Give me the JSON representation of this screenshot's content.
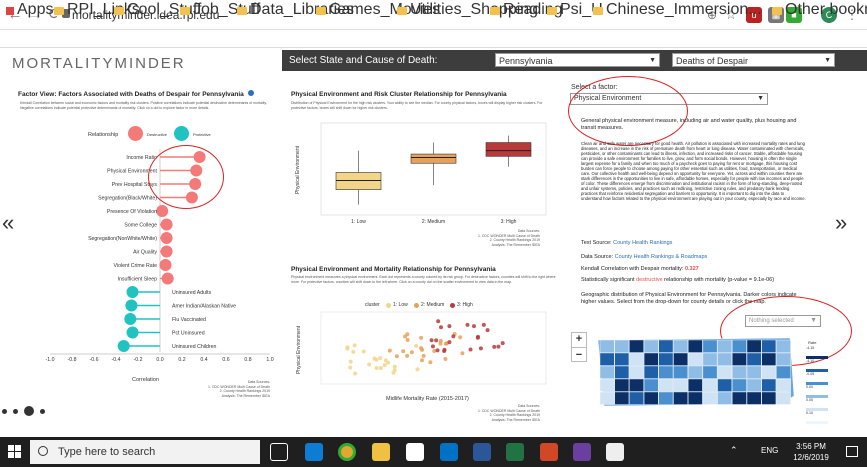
{
  "browser": {
    "url": "mortalityminder.idea.rpi.edu",
    "bookmarks": [
      "Apps",
      "RPI_Links",
      "Cool_Stuff",
      "Job_Stuff",
      "Data_Libraries",
      "Games_Movies",
      "Utilities_Shopping",
      "Reading",
      "Psi_U",
      "Chinese_Immersion..."
    ],
    "other_bookmarks": "Other bookmarks",
    "profile_initial": "C"
  },
  "app": {
    "logo": "MORTALITYMINDER",
    "select_label": "Select State and Cause of Death:",
    "state": "Pennsylvania",
    "cause": "Deaths of Despair"
  },
  "factor_view": {
    "title": "Factor View: Factors Associated with Deaths of Despair for Pennsylvania",
    "intro": "Kendall Correlation between social and economic factors and mortality risk clusters. Positive correlations indicate potential destructive determinants of mortality. Negative correlations indicate potential protective determinants of mortality. Click on a dot to explore factor in more details.",
    "legend_label": "Relationship",
    "legend_destructive": "Destructive",
    "legend_protective": "Protective",
    "x_axis_label": "Correlation",
    "source": "Data Sources:\n1. CDC WONDER Multi Cause of Death\n2. County Health Rankings 2019\nAnalysis: The Remember IDEA",
    "colors": {
      "destructive": "#f47a7a",
      "protective": "#20c2c2"
    }
  },
  "cluster_box": {
    "title": "Physical Environment and Risk Cluster Relationship for Pennsylvania",
    "desc": "Distribution of Physical Environment for the high risk clusters. Your ability to see the median. For county physical factors, boxes will display higher risk clusters. For protective factors, boxes will shift down for higher risk clusters.",
    "y_axis_label": "Physical Environment",
    "source": "Data Sources:\n1. CDC WONDER Multi Cause of Death\n2. County Health Rankings 2019\nAnalysis: The Remember IDEA"
  },
  "scatter": {
    "title": "Physical Environment and Mortality Relationship for Pennsylvania",
    "desc": "Physical environment measures a physical environment. Each dot represents a county colored by its risk group. For destructive factors, counties will shift to the right where more. For protective factors, counties will shift down to the left where. Click on a county dot on the scatter environment to view data in the map.",
    "legend_title": "cluster",
    "legend_items": [
      "1: Low",
      "2: Medium",
      "3: High"
    ],
    "legend_colors": [
      "#f3d58a",
      "#e8a15a",
      "#b93a3a"
    ],
    "x_axis_label": "Midlife Mortality Rate (2015-2017)",
    "y_axis_label": "Physical Environment",
    "source": "Data Sources:\n1. CDC WONDER Multi Cause of Death\n2. County Health Rankings 2019\nAnalysis: The Remember IDEA"
  },
  "factor_detail": {
    "select_label": "Select a factor:",
    "selected": "Physical Environment",
    "summary": "General physical environment measure, including air and water quality, plus housing and transit measures.",
    "body": "Clean air and safe water are necessary for good health. Air pollution is associated with increased mortality rates and lung diseases, and an increase in the risk of premature death from heart or lung disease. Water contaminated with chemicals, pesticides, or other contaminants can lead to illness, infection, and increased risks of cancer. Stable, affordable housing can provide a safe environment for families to live, grow, and form social bonds. However, housing is often the single largest expense for a family and when too much of a paycheck goes to paying for rent or mortgage, this housing cost burden can force people to choose among paying for other essential such as utilities, food, transportation, or medical care. Our collective health and well-being depend on opportunity for everyone. Yet, across and within counties there are stark differences in the opportunities to live in safe, affordable homes, especially for people with low incomes and people of color. These differences emerge from discrimination and institutional racism in the form of long-standing, deep-rooted and unfair systems, policies, and practices such as redlining, restrictive zoning rules, and predatory bank lending practices that reinforce residential segregation and barriers to opportunity. It is important to dig into the data to understand how factors related to the physical environment are playing out in your county, especially by race and income.",
    "text_source_label": "Text Source:",
    "text_source": "County Health Rankings",
    "data_source_label": "Data Source:",
    "data_source": "County Health Rankings & Roadmaps",
    "kendall_label": "Kendall Correlation with Despair mortality:",
    "kendall_value": "0.327",
    "significance_pre": "Statistically significant",
    "significance_word": "destructive",
    "significance_post": "relationship with mortality (p-value = 9.1e-06)",
    "map_desc": "Geographic distribution of Physical Environment for Pennsylvania. Darker colors indicate higher values. Select from the drop-down for county details or click the map.",
    "county_select": "Nothing selected",
    "zoom_in": "+",
    "zoom_out": "−",
    "map_legend_title": "Rate",
    "map_legend_values": [
      "-4.15",
      "-4.10",
      "-0.05",
      "0.00",
      "0.05",
      "0.10"
    ]
  },
  "taskbar": {
    "search_placeholder": "Type here to search",
    "time": "3:56 PM",
    "date": "12/6/2019",
    "lang": "ENG"
  },
  "chart_data": [
    {
      "type": "scatter",
      "title": "Factor View: Factors Associated with Deaths of Despair for Pennsylvania",
      "xlabel": "Correlation",
      "xlim": [
        -1.0,
        1.0
      ],
      "x_ticks": [
        "-1.0",
        "-0.8",
        "-0.6",
        "-0.4",
        "-0.2",
        "0.0",
        "0.2",
        "0.4",
        "0.6",
        "0.8",
        "1.0"
      ],
      "series": [
        {
          "name": "Destructive",
          "categories": [
            "Income Ratio",
            "Physical Environment",
            "Prev Hospital Stays",
            "Segregation(Black/White)",
            "Presence Of Violation",
            "Some College",
            "Segregation(NonWhite/White)",
            "Air Quality",
            "Violent Crime Rate",
            "Insufficient Sleep"
          ],
          "values": [
            0.36,
            0.33,
            0.32,
            0.29,
            0.02,
            0.06,
            0.06,
            0.06,
            0.05,
            0.07
          ]
        },
        {
          "name": "Protective",
          "categories": [
            "Uninsured Adults",
            "Amer Indian/Alaskan Native",
            "Flu Vaccinated",
            "Pct Uninsured",
            "Uninsured Children"
          ],
          "values": [
            -0.25,
            -0.26,
            -0.27,
            -0.25,
            -0.33
          ]
        }
      ]
    },
    {
      "type": "bar",
      "title": "Physical Environment and Risk Cluster Relationship for Pennsylvania",
      "categories": [
        "1: Low",
        "2: Medium",
        "3: High"
      ],
      "ylabel": "Physical Environment",
      "boxes": [
        {
          "name": "1: Low",
          "min": 0.9,
          "q1": 2.2,
          "median": 3.0,
          "q3": 3.7,
          "max": 5.6
        },
        {
          "name": "2: Medium",
          "min": 2.6,
          "q1": 4.5,
          "median": 5.0,
          "q3": 5.3,
          "max": 6.3
        },
        {
          "name": "3: High",
          "min": 4.2,
          "q1": 5.1,
          "median": 5.6,
          "q3": 6.3,
          "max": 6.9
        }
      ],
      "ylim": [
        0,
        8
      ]
    }
  ]
}
